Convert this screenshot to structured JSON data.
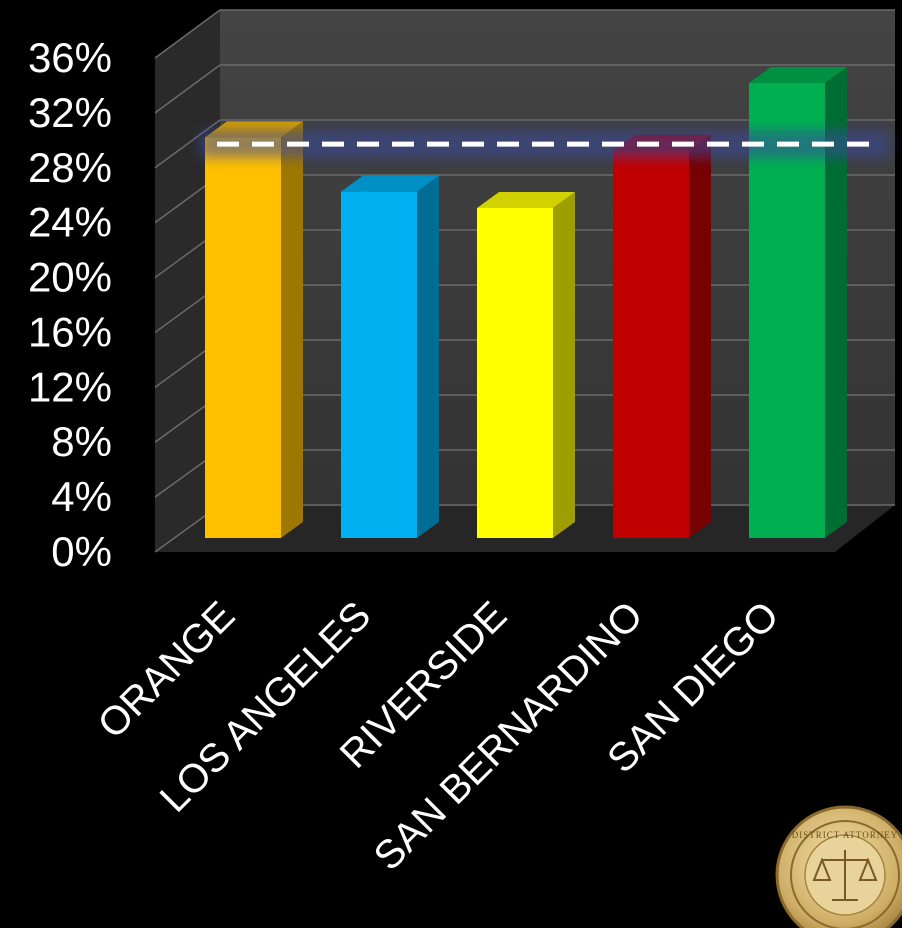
{
  "chart_data": {
    "type": "bar",
    "categories": [
      "ORANGE",
      "LOS ANGELES",
      "RIVERSIDE",
      "SAN BERNARDINO",
      "SAN DIEGO"
    ],
    "values": [
      29.5,
      25.5,
      24.3,
      28.5,
      33.5
    ],
    "colors": [
      "#ffc000",
      "#00b0f0",
      "#ffff00",
      "#c00000",
      "#00b050"
    ],
    "reference_line": 29.0,
    "yticks": [
      "0%",
      "4%",
      "8%",
      "12%",
      "16%",
      "20%",
      "24%",
      "28%",
      "32%",
      "36%"
    ],
    "ylim": [
      0,
      36
    ],
    "grid": true,
    "style": "3d-bar",
    "background": "#000000",
    "wall_color": "#3f3f3f",
    "text_color": "#ffffff"
  },
  "seal": {
    "text": "DISTRICT ATTORNEY"
  }
}
